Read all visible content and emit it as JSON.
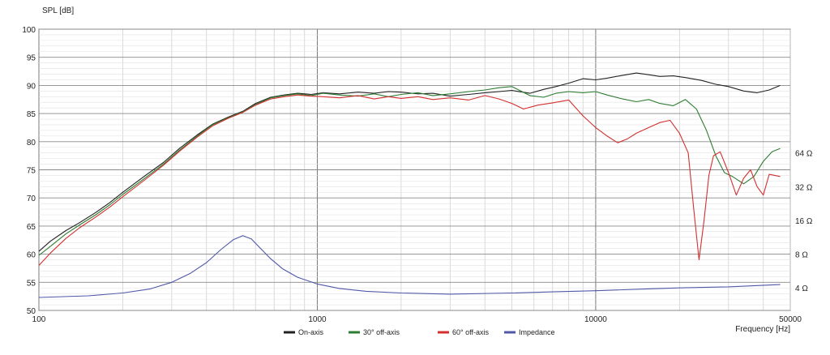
{
  "chart_data": {
    "type": "line",
    "title": "",
    "ylabel": "SPL [dB]",
    "xlabel": "Frequency [Hz]",
    "x_scale": "log",
    "xlim": [
      100,
      50000
    ],
    "ylim": [
      50,
      100
    ],
    "y_ticks": [
      50,
      55,
      60,
      65,
      70,
      75,
      80,
      85,
      90,
      95,
      100
    ],
    "x_tick_labels": [
      {
        "value": 100,
        "label": "100"
      },
      {
        "value": 1000,
        "label": "1000"
      },
      {
        "value": 10000,
        "label": "10000"
      },
      {
        "value": 50000,
        "label": "50000"
      }
    ],
    "right_axis": {
      "label": "Impedance",
      "ticks": [
        {
          "label": "64 Ω",
          "y": 78
        },
        {
          "label": "32 Ω",
          "y": 72
        },
        {
          "label": "16 Ω",
          "y": 66
        },
        {
          "label": "8 Ω",
          "y": 60
        },
        {
          "label": "4 Ω",
          "y": 54
        }
      ]
    },
    "grid": true,
    "legend_position": "bottom-center",
    "series": [
      {
        "name": "On-axis",
        "color": "#222222",
        "points": [
          [
            100,
            60.5
          ],
          [
            110,
            62.3
          ],
          [
            125,
            64.2
          ],
          [
            140,
            65.6
          ],
          [
            160,
            67.4
          ],
          [
            180,
            69.2
          ],
          [
            200,
            71.0
          ],
          [
            240,
            73.9
          ],
          [
            280,
            76.3
          ],
          [
            320,
            78.8
          ],
          [
            370,
            81.2
          ],
          [
            420,
            83.1
          ],
          [
            480,
            84.4
          ],
          [
            540,
            85.4
          ],
          [
            600,
            86.8
          ],
          [
            680,
            87.9
          ],
          [
            760,
            88.3
          ],
          [
            850,
            88.6
          ],
          [
            950,
            88.4
          ],
          [
            1050,
            88.7
          ],
          [
            1200,
            88.5
          ],
          [
            1400,
            88.8
          ],
          [
            1600,
            88.6
          ],
          [
            1800,
            88.9
          ],
          [
            2000,
            88.8
          ],
          [
            2300,
            88.5
          ],
          [
            2600,
            88.6
          ],
          [
            3000,
            88.1
          ],
          [
            3500,
            88.4
          ],
          [
            4000,
            88.7
          ],
          [
            4500,
            88.9
          ],
          [
            5000,
            89.1
          ],
          [
            5800,
            88.6
          ],
          [
            6500,
            89.3
          ],
          [
            7200,
            89.8
          ],
          [
            8000,
            90.4
          ],
          [
            9000,
            91.2
          ],
          [
            10000,
            91.0
          ],
          [
            11000,
            91.3
          ],
          [
            12500,
            91.8
          ],
          [
            14000,
            92.2
          ],
          [
            15500,
            91.9
          ],
          [
            17000,
            91.6
          ],
          [
            19000,
            91.7
          ],
          [
            21000,
            91.4
          ],
          [
            24000,
            90.9
          ],
          [
            27000,
            90.2
          ],
          [
            30000,
            89.8
          ],
          [
            34000,
            89.0
          ],
          [
            38000,
            88.7
          ],
          [
            42000,
            89.2
          ],
          [
            46000,
            90.0
          ]
        ]
      },
      {
        "name": "30° off-axis",
        "color": "#2e7d32",
        "points": [
          [
            100,
            59.8
          ],
          [
            110,
            61.4
          ],
          [
            125,
            63.6
          ],
          [
            140,
            65.2
          ],
          [
            160,
            67.0
          ],
          [
            180,
            68.8
          ],
          [
            200,
            70.6
          ],
          [
            240,
            73.5
          ],
          [
            280,
            76.0
          ],
          [
            320,
            78.5
          ],
          [
            370,
            81.0
          ],
          [
            420,
            83.0
          ],
          [
            480,
            84.3
          ],
          [
            540,
            85.3
          ],
          [
            600,
            86.6
          ],
          [
            680,
            87.8
          ],
          [
            760,
            88.2
          ],
          [
            850,
            88.5
          ],
          [
            950,
            88.2
          ],
          [
            1050,
            88.6
          ],
          [
            1200,
            88.3
          ],
          [
            1400,
            88.1
          ],
          [
            1600,
            88.5
          ],
          [
            1800,
            88.0
          ],
          [
            2000,
            88.4
          ],
          [
            2300,
            88.7
          ],
          [
            2600,
            88.2
          ],
          [
            3000,
            88.5
          ],
          [
            3500,
            88.9
          ],
          [
            4000,
            89.2
          ],
          [
            4500,
            89.6
          ],
          [
            5000,
            89.8
          ],
          [
            5800,
            88.2
          ],
          [
            6500,
            87.9
          ],
          [
            7200,
            88.6
          ],
          [
            8000,
            88.9
          ],
          [
            9000,
            88.7
          ],
          [
            10000,
            88.9
          ],
          [
            11000,
            88.3
          ],
          [
            12500,
            87.6
          ],
          [
            14000,
            87.1
          ],
          [
            15500,
            87.5
          ],
          [
            17000,
            86.8
          ],
          [
            19000,
            86.4
          ],
          [
            21000,
            87.5
          ],
          [
            23000,
            85.8
          ],
          [
            25000,
            82.0
          ],
          [
            27000,
            77.5
          ],
          [
            29000,
            74.5
          ],
          [
            31000,
            73.8
          ],
          [
            34000,
            72.5
          ],
          [
            37000,
            73.8
          ],
          [
            40000,
            76.5
          ],
          [
            43000,
            78.2
          ],
          [
            46000,
            78.8
          ]
        ]
      },
      {
        "name": "60° off-axis",
        "color": "#d32f2f",
        "points": [
          [
            100,
            58.0
          ],
          [
            110,
            60.2
          ],
          [
            125,
            62.8
          ],
          [
            140,
            64.7
          ],
          [
            160,
            66.6
          ],
          [
            180,
            68.4
          ],
          [
            200,
            70.2
          ],
          [
            240,
            73.2
          ],
          [
            280,
            75.8
          ],
          [
            320,
            78.3
          ],
          [
            370,
            80.8
          ],
          [
            420,
            82.8
          ],
          [
            480,
            84.2
          ],
          [
            540,
            85.2
          ],
          [
            600,
            86.5
          ],
          [
            680,
            87.6
          ],
          [
            760,
            88.0
          ],
          [
            850,
            88.3
          ],
          [
            950,
            88.1
          ],
          [
            1050,
            88.0
          ],
          [
            1200,
            87.8
          ],
          [
            1400,
            88.2
          ],
          [
            1600,
            87.6
          ],
          [
            1800,
            88.0
          ],
          [
            2000,
            87.7
          ],
          [
            2300,
            88.0
          ],
          [
            2600,
            87.5
          ],
          [
            3000,
            87.8
          ],
          [
            3500,
            87.4
          ],
          [
            4000,
            88.2
          ],
          [
            4500,
            87.6
          ],
          [
            5000,
            86.8
          ],
          [
            5500,
            85.8
          ],
          [
            6200,
            86.5
          ],
          [
            7000,
            86.9
          ],
          [
            8000,
            87.4
          ],
          [
            9000,
            84.6
          ],
          [
            10000,
            82.5
          ],
          [
            11000,
            81.0
          ],
          [
            12000,
            79.8
          ],
          [
            13000,
            80.5
          ],
          [
            14000,
            81.5
          ],
          [
            15500,
            82.5
          ],
          [
            17000,
            83.4
          ],
          [
            18500,
            83.8
          ],
          [
            20000,
            81.5
          ],
          [
            21500,
            78.0
          ],
          [
            22500,
            68.0
          ],
          [
            23500,
            59.0
          ],
          [
            24500,
            66.0
          ],
          [
            25500,
            74.0
          ],
          [
            26500,
            77.5
          ],
          [
            28000,
            78.2
          ],
          [
            30000,
            74.5
          ],
          [
            32000,
            70.5
          ],
          [
            34000,
            73.5
          ],
          [
            36000,
            75.0
          ],
          [
            38000,
            72.0
          ],
          [
            40000,
            70.5
          ],
          [
            42000,
            74.2
          ],
          [
            46000,
            73.8
          ]
        ]
      },
      {
        "name": "Impedance",
        "color": "#5058a8",
        "points": [
          [
            100,
            52.3
          ],
          [
            150,
            52.6
          ],
          [
            200,
            53.1
          ],
          [
            250,
            53.8
          ],
          [
            300,
            55.0
          ],
          [
            350,
            56.6
          ],
          [
            400,
            58.5
          ],
          [
            450,
            60.8
          ],
          [
            500,
            62.6
          ],
          [
            540,
            63.3
          ],
          [
            580,
            62.7
          ],
          [
            620,
            61.2
          ],
          [
            680,
            59.2
          ],
          [
            750,
            57.4
          ],
          [
            850,
            55.9
          ],
          [
            1000,
            54.7
          ],
          [
            1200,
            53.9
          ],
          [
            1500,
            53.4
          ],
          [
            2000,
            53.1
          ],
          [
            3000,
            52.9
          ],
          [
            5000,
            53.1
          ],
          [
            7000,
            53.3
          ],
          [
            10000,
            53.5
          ],
          [
            15000,
            53.8
          ],
          [
            20000,
            54.0
          ],
          [
            30000,
            54.2
          ],
          [
            46000,
            54.6
          ]
        ]
      }
    ]
  }
}
